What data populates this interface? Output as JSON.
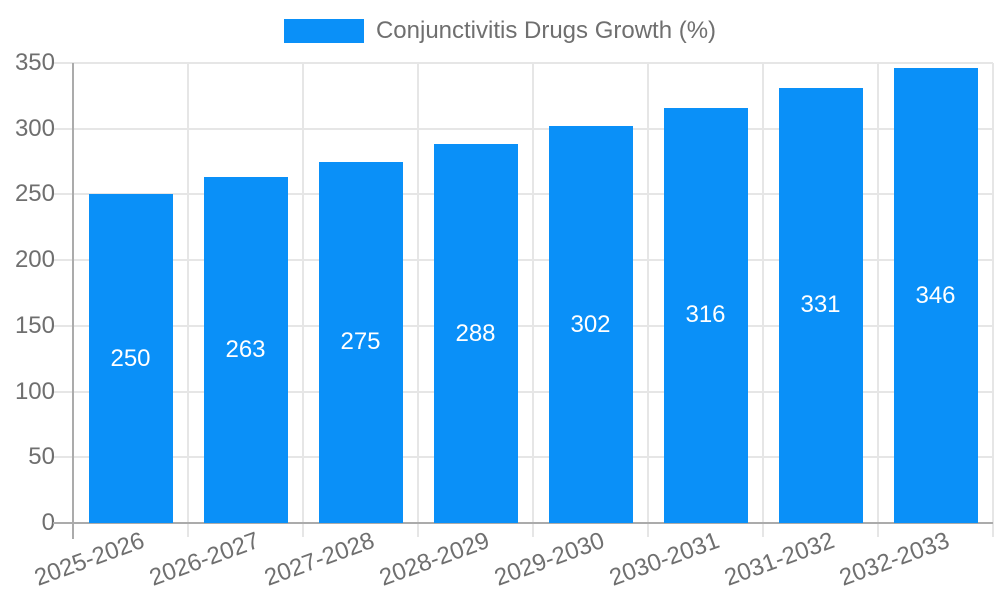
{
  "chart_data": {
    "type": "bar",
    "title": "",
    "xlabel": "",
    "ylabel": "",
    "categories": [
      "2025-2026",
      "2026-2027",
      "2027-2028",
      "2028-2029",
      "2029-2030",
      "2030-2031",
      "2031-2032",
      "2032-2033"
    ],
    "series": [
      {
        "name": "Conjunctivitis Drugs Growth (%)",
        "values": [
          250,
          263,
          275,
          288,
          302,
          316,
          331,
          346
        ]
      }
    ],
    "value_labels": [
      "250",
      "263",
      "275",
      "288",
      "302",
      "316",
      "331",
      "346"
    ],
    "ylim": [
      0,
      350
    ],
    "yticks": [
      0,
      50,
      100,
      150,
      200,
      250,
      300,
      350
    ],
    "ytick_labels": [
      "0",
      "50",
      "100",
      "150",
      "200",
      "250",
      "300",
      "350"
    ],
    "grid": true,
    "legend_position": "top",
    "colors": {
      "bar": "#0a90f8",
      "grid_line": "#e6e6e6",
      "axis_line": "#ababab",
      "tick_text": "#6f6f6f",
      "value_text": "#ffffff",
      "legend_text": "#6f6f6f",
      "background": "#ffffff"
    }
  }
}
